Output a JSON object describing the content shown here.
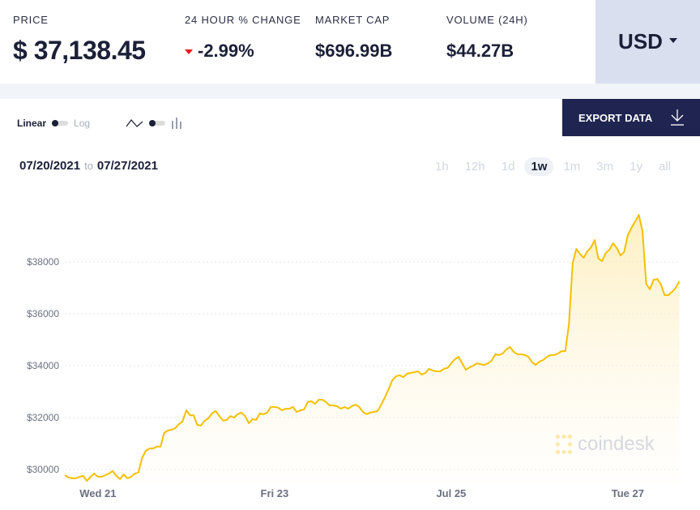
{
  "header": {
    "price": {
      "label": "PRICE",
      "value": "$ 37,138.45"
    },
    "change": {
      "label": "24 HOUR % CHANGE",
      "value": "-2.99%",
      "direction": "down",
      "color": "#f01818"
    },
    "market_cap": {
      "label": "MARKET CAP",
      "value": "$696.99B"
    },
    "volume": {
      "label": "VOLUME (24H)",
      "value": "$44.27B"
    },
    "currency": "USD"
  },
  "controls": {
    "linear": "Linear",
    "log": "Log",
    "line_icon": "line-chart-icon",
    "bar_icon": "bar-chart-icon",
    "export": "EXPORT DATA"
  },
  "range": {
    "from": "07/20/2021",
    "to_word": "to",
    "to": "07/27/2021"
  },
  "periods": [
    {
      "label": "1h"
    },
    {
      "label": "12h"
    },
    {
      "label": "1d"
    },
    {
      "label": "1w",
      "active": true
    },
    {
      "label": "1m"
    },
    {
      "label": "3m"
    },
    {
      "label": "1y"
    },
    {
      "label": "all"
    }
  ],
  "watermark": "coindesk",
  "colors": {
    "line": "#f5c000",
    "accent": "#1f2550",
    "currency_bg": "#dadff0"
  },
  "chart_data": {
    "type": "area",
    "x_start": "2021-07-20 15:00",
    "interval": "1h",
    "ylim": [
      29500,
      40900
    ],
    "yticks": [
      {
        "value": 30000,
        "label": "$30000"
      },
      {
        "value": 32000,
        "label": "$32000"
      },
      {
        "value": 34000,
        "label": "$34000"
      },
      {
        "value": 36000,
        "label": "$36000"
      },
      {
        "value": 38000,
        "label": "$38000"
      }
    ],
    "xticks": [
      {
        "time": "2021-07-21 00:00",
        "label": "Wed 21"
      },
      {
        "time": "2021-07-23 00:00",
        "label": "Fri 23"
      },
      {
        "time": "2021-07-25 00:00",
        "label": "Jul 25"
      },
      {
        "time": "2021-07-27 00:00",
        "label": "Tue 27"
      }
    ],
    "grid": true,
    "values": [
      29780,
      29690,
      29660,
      29660,
      29720,
      29750,
      29560,
      29720,
      29840,
      29720,
      29720,
      29780,
      29840,
      29940,
      29750,
      29630,
      29810,
      29660,
      29720,
      29840,
      29880,
      30440,
      30720,
      30810,
      30810,
      30880,
      30880,
      31410,
      31500,
      31530,
      31590,
      31750,
      31840,
      32280,
      32090,
      32090,
      31720,
      31690,
      31880,
      31970,
      32160,
      32250,
      32060,
      31880,
      31910,
      32060,
      32000,
      32130,
      32190,
      32060,
      31780,
      31940,
      31910,
      32160,
      32130,
      32190,
      32410,
      32410,
      32380,
      32280,
      32340,
      32340,
      32410,
      32220,
      32280,
      32310,
      32590,
      32630,
      32530,
      32690,
      32690,
      32590,
      32470,
      32470,
      32440,
      32340,
      32410,
      32340,
      32440,
      32500,
      32410,
      32220,
      32130,
      32190,
      32220,
      32250,
      32500,
      32780,
      33090,
      33440,
      33590,
      33630,
      33560,
      33690,
      33720,
      33750,
      33780,
      33660,
      33720,
      33880,
      33810,
      33780,
      33780,
      33880,
      33910,
      34090,
      34250,
      34340,
      34090,
      33840,
      33940,
      34000,
      34090,
      34060,
      34030,
      34090,
      34190,
      34440,
      34410,
      34470,
      34630,
      34720,
      34530,
      34440,
      34440,
      34410,
      34340,
      34130,
      34030,
      34160,
      34220,
      34340,
      34410,
      34410,
      34470,
      34560,
      34560,
      35590,
      37940,
      38500,
      38310,
      38160,
      38410,
      38560,
      38840,
      38130,
      38030,
      38340,
      38470,
      38720,
      38530,
      38250,
      38380,
      39030,
      39310,
      39560,
      39810,
      39190,
      37160,
      36940,
      37310,
      37340,
      37130,
      36720,
      36720,
      36840,
      37000,
      37250
    ]
  }
}
